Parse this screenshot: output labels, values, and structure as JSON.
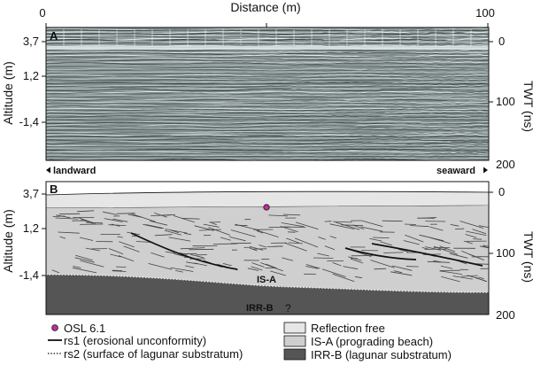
{
  "distance_axis": {
    "label": "Distance (m)",
    "ticks": [
      "0",
      "100"
    ]
  },
  "panel_a": {
    "label": "A",
    "altitude_label": "Altitude (m)",
    "altitude_ticks": [
      "3,7",
      "1,2",
      "-1,4"
    ],
    "twt_label": "TWT (ns)",
    "twt_ticks": [
      "0",
      "100",
      "200"
    ],
    "left_direction": "landward",
    "right_direction": "seaward"
  },
  "panel_b": {
    "label": "B",
    "altitude_label": "Altitude (m)",
    "altitude_ticks": [
      "3,7",
      "1,2",
      "-1,4"
    ],
    "twt_label": "TWT (ns)",
    "twt_ticks": [
      "0",
      "100",
      "200"
    ],
    "unit_label_isa": "IS-A",
    "unit_label_irrb": "IRR-B",
    "uncertain_mark": "?"
  },
  "legend": {
    "osl": "OSL 6.1",
    "rs1": "rs1 (erosional unconformity)",
    "rs2": "rs2 (surface of lagunar substratum)",
    "reflection_free": "Reflection free",
    "isa": "IS-A (prograding beach)",
    "irrb": "IRR-B (lagunar substratum)"
  },
  "colors": {
    "reflection_free": "#e6e6e6",
    "isa": "#cfcfcf",
    "irrb": "#555555",
    "osl_marker": "#c0309a",
    "radargram_base": "#7d8a8a"
  }
}
